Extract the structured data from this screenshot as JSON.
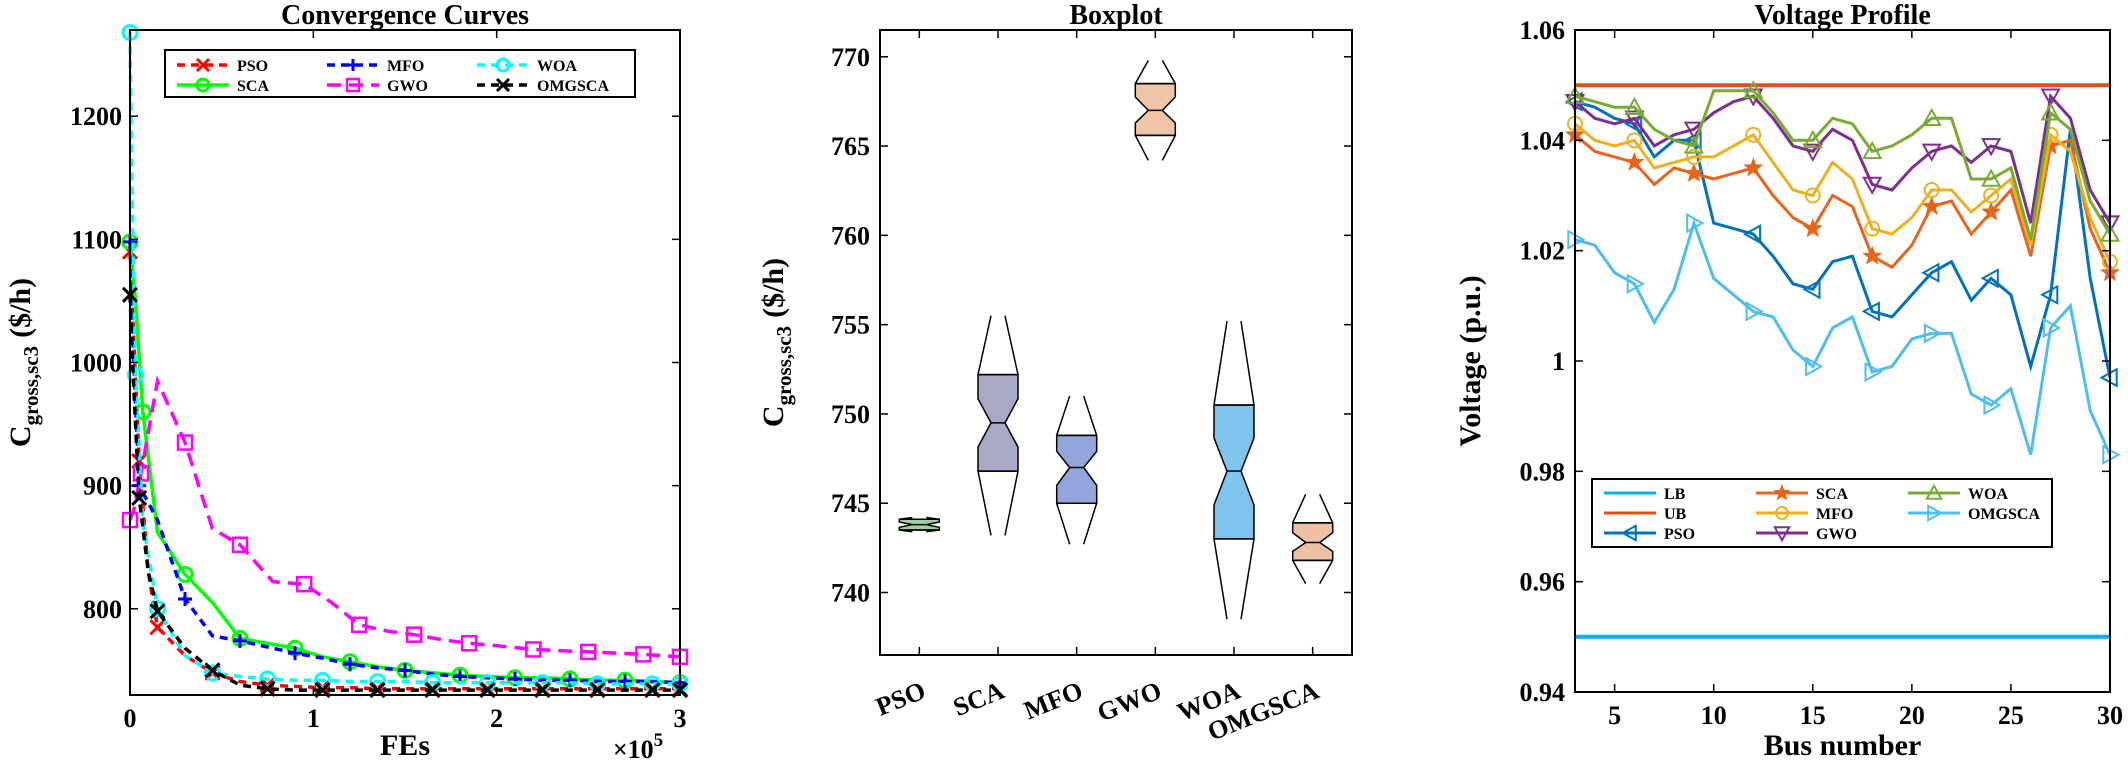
{
  "chart_data": [
    {
      "type": "line",
      "title": "Convergence Curves",
      "xlabel": "FEs",
      "ylabel_main": "C",
      "ylabel_sub": "gross,sc3",
      "ylabel_unit": "($/h)",
      "x_multiplier": "×10",
      "x_multiplier_exp": "5",
      "xlim": [
        0,
        3
      ],
      "ylim": [
        730,
        1270
      ],
      "xticks": [
        0,
        1,
        2,
        3
      ],
      "yticks": [
        800,
        900,
        1000,
        1100,
        1200
      ],
      "legend": "top",
      "series": [
        {
          "name": "PSO",
          "color": "#ff0000",
          "dash": "8,6",
          "marker": "x",
          "x": [
            0,
            0.02,
            0.05,
            0.1,
            0.15,
            0.3,
            0.45,
            0.6,
            0.75,
            0.9,
            1.05,
            1.2,
            1.35,
            1.5,
            1.65,
            1.8,
            1.95,
            2.1,
            2.25,
            2.4,
            2.55,
            2.7,
            2.85,
            3.0
          ],
          "y": [
            1090,
            1020,
            920,
            830,
            785,
            762,
            748,
            741,
            738,
            737,
            736,
            736,
            735,
            735,
            735,
            735,
            735,
            735,
            735,
            735,
            735,
            735,
            735,
            735
          ]
        },
        {
          "name": "SCA",
          "color": "#00ff00",
          "dash": "",
          "marker": "o",
          "x": [
            0,
            0.03,
            0.07,
            0.15,
            0.3,
            0.45,
            0.6,
            0.75,
            0.9,
            1.05,
            1.2,
            1.35,
            1.5,
            1.65,
            1.8,
            1.95,
            2.1,
            2.25,
            2.4,
            2.55,
            2.7,
            2.85,
            3.0
          ],
          "y": [
            1098,
            1050,
            960,
            862,
            828,
            805,
            776,
            772,
            768,
            761,
            757,
            753,
            750,
            748,
            746,
            745,
            744,
            744,
            743,
            742,
            742,
            741,
            740
          ]
        },
        {
          "name": "MFO",
          "color": "#0000ff",
          "dash": "8,6",
          "marker": "+",
          "x": [
            0,
            0.02,
            0.05,
            0.15,
            0.3,
            0.45,
            0.6,
            0.75,
            0.9,
            1.05,
            1.2,
            1.35,
            1.5,
            1.65,
            1.8,
            1.95,
            2.1,
            2.25,
            2.4,
            2.55,
            2.7,
            2.85,
            3.0
          ],
          "y": [
            1098,
            1000,
            900,
            872,
            808,
            778,
            774,
            769,
            764,
            760,
            755,
            752,
            750,
            747,
            745,
            744,
            743,
            742,
            742,
            741,
            741,
            741,
            740
          ]
        },
        {
          "name": "GWO",
          "color": "#ff00ff",
          "dash": "14,8",
          "marker": "s",
          "x": [
            0,
            0.02,
            0.06,
            0.15,
            0.3,
            0.45,
            0.6,
            0.78,
            0.95,
            1.1,
            1.25,
            1.4,
            1.55,
            1.7,
            1.85,
            2.0,
            2.2,
            2.35,
            2.5,
            2.65,
            2.8,
            3.0
          ],
          "y": [
            872,
            880,
            910,
            985,
            935,
            865,
            852,
            822,
            820,
            805,
            787,
            782,
            779,
            775,
            772,
            770,
            767,
            766,
            765,
            764,
            763,
            761
          ]
        },
        {
          "name": "WOA",
          "color": "#00ffff",
          "dash": "8,6",
          "marker": "o",
          "x": [
            0,
            0.01,
            0.03,
            0.07,
            0.15,
            0.3,
            0.45,
            0.6,
            0.75,
            0.9,
            1.05,
            1.2,
            1.35,
            1.5,
            1.65,
            1.8,
            1.95,
            2.1,
            2.25,
            2.4,
            2.55,
            2.7,
            2.85,
            3.0
          ],
          "y": [
            1268,
            1150,
            990,
            870,
            800,
            762,
            748,
            745,
            743,
            742,
            742,
            741,
            741,
            741,
            740,
            740,
            740,
            740,
            740,
            740,
            739,
            739,
            739,
            739
          ]
        },
        {
          "name": "OMGSCA",
          "color": "#000000",
          "dash": "8,6",
          "marker": "x",
          "x": [
            0,
            0.02,
            0.05,
            0.1,
            0.15,
            0.3,
            0.45,
            0.6,
            0.75,
            0.9,
            1.05,
            1.2,
            1.35,
            1.5,
            1.65,
            1.8,
            1.95,
            2.1,
            2.25,
            2.4,
            2.55,
            2.7,
            2.85,
            3.0
          ],
          "y": [
            1055,
            980,
            890,
            830,
            798,
            768,
            750,
            738,
            735,
            734,
            734,
            734,
            734,
            734,
            734,
            734,
            734,
            734,
            734,
            734,
            734,
            734,
            734,
            734
          ]
        }
      ]
    },
    {
      "type": "box",
      "title": "Boxplot",
      "ylabel_main": "C",
      "ylabel_sub": "gross,sc3",
      "ylabel_unit": "($/h)",
      "ylim": [
        736.5,
        771.5
      ],
      "yticks": [
        740,
        745,
        750,
        755,
        760,
        765,
        770
      ],
      "categories": [
        "PSO",
        "SCA",
        "MFO",
        "GWO",
        "WOA",
        "OMGSCA"
      ],
      "boxes": [
        {
          "name": "PSO",
          "q1": 743.5,
          "median": 743.8,
          "q3": 744.1,
          "min": 743.4,
          "max": 744.2,
          "color": "#9fcf9f"
        },
        {
          "name": "SCA",
          "q1": 746.8,
          "median": 749.5,
          "q3": 752.2,
          "min": 743.2,
          "max": 755.5,
          "color": "#a7a9c7"
        },
        {
          "name": "MFO",
          "q1": 745.0,
          "median": 747.0,
          "q3": 748.8,
          "min": 742.7,
          "max": 751.0,
          "color": "#93a6dc"
        },
        {
          "name": "GWO",
          "q1": 765.6,
          "median": 767.0,
          "q3": 768.5,
          "min": 764.2,
          "max": 769.8,
          "color": "#eec5a6"
        },
        {
          "name": "WOA",
          "q1": 743.0,
          "median": 746.8,
          "q3": 750.5,
          "min": 738.5,
          "max": 755.2,
          "color": "#7fc4ec"
        },
        {
          "name": "OMGSCA",
          "q1": 741.8,
          "median": 742.8,
          "q3": 743.9,
          "min": 740.5,
          "max": 745.5,
          "color": "#eec0a2"
        }
      ]
    },
    {
      "type": "line",
      "title": "Voltage Profile",
      "xlabel": "Bus number",
      "ylabel": "Voltage (p.u.)",
      "xlim": [
        3,
        30
      ],
      "ylim": [
        0.94,
        1.06
      ],
      "xticks": [
        5,
        10,
        15,
        20,
        25,
        30
      ],
      "yticks": [
        0.94,
        0.96,
        0.98,
        1,
        1.02,
        1.04,
        1.06
      ],
      "ytick_labels": [
        "0.94",
        "0.96",
        "0.98",
        "1",
        "1.02",
        "1.04",
        "1.06"
      ],
      "legend": "bottom-left",
      "bus": [
        3,
        4,
        5,
        6,
        7,
        8,
        9,
        10,
        11,
        12,
        13,
        14,
        15,
        16,
        17,
        18,
        19,
        20,
        21,
        22,
        23,
        24,
        25,
        26,
        27,
        28,
        29,
        30
      ],
      "series": [
        {
          "name": "LB",
          "color": "#00b0f0",
          "marker": "",
          "values": [
            0.95,
            0.95,
            0.95,
            0.95,
            0.95,
            0.95,
            0.95,
            0.95,
            0.95,
            0.95,
            0.95,
            0.95,
            0.95,
            0.95,
            0.95,
            0.95,
            0.95,
            0.95,
            0.95,
            0.95,
            0.95,
            0.95,
            0.95,
            0.95,
            0.95,
            0.95,
            0.95,
            0.95
          ]
        },
        {
          "name": "UB",
          "color": "#d95319",
          "marker": "",
          "values": [
            1.05,
            1.05,
            1.05,
            1.05,
            1.05,
            1.05,
            1.05,
            1.05,
            1.05,
            1.05,
            1.05,
            1.05,
            1.05,
            1.05,
            1.05,
            1.05,
            1.05,
            1.05,
            1.05,
            1.05,
            1.05,
            1.05,
            1.05,
            1.05,
            1.05,
            1.05,
            1.05,
            1.05
          ]
        },
        {
          "name": "PSO",
          "color": "#0072bd",
          "marker": "tri-left",
          "values": [
            1.047,
            1.046,
            1.044,
            1.043,
            1.037,
            1.04,
            1.04,
            1.025,
            1.024,
            1.023,
            1.019,
            1.014,
            1.013,
            1.018,
            1.019,
            1.009,
            1.008,
            1.012,
            1.016,
            1.018,
            1.011,
            1.015,
            1.012,
            0.999,
            1.012,
            1.042,
            1.015,
            0.997
          ]
        },
        {
          "name": "SCA",
          "color": "#e8641b",
          "marker": "star",
          "values": [
            1.041,
            1.038,
            1.037,
            1.036,
            1.032,
            1.035,
            1.034,
            1.033,
            1.034,
            1.035,
            1.03,
            1.026,
            1.024,
            1.03,
            1.028,
            1.019,
            1.017,
            1.021,
            1.028,
            1.029,
            1.023,
            1.027,
            1.031,
            1.019,
            1.039,
            1.04,
            1.024,
            1.016
          ]
        },
        {
          "name": "MFO",
          "color": "#edb120",
          "marker": "circle",
          "values": [
            1.043,
            1.04,
            1.039,
            1.04,
            1.035,
            1.036,
            1.037,
            1.037,
            1.039,
            1.041,
            1.036,
            1.031,
            1.03,
            1.036,
            1.033,
            1.024,
            1.023,
            1.026,
            1.031,
            1.031,
            1.027,
            1.03,
            1.033,
            1.021,
            1.041,
            1.038,
            1.026,
            1.018
          ]
        },
        {
          "name": "GWO",
          "color": "#7e2f8e",
          "marker": "tri-down",
          "values": [
            1.047,
            1.044,
            1.043,
            1.044,
            1.039,
            1.041,
            1.042,
            1.045,
            1.047,
            1.048,
            1.044,
            1.039,
            1.038,
            1.042,
            1.04,
            1.032,
            1.031,
            1.035,
            1.038,
            1.039,
            1.036,
            1.039,
            1.038,
            1.025,
            1.048,
            1.044,
            1.031,
            1.025
          ]
        },
        {
          "name": "WOA",
          "color": "#77ac30",
          "marker": "tri-up",
          "values": [
            1.048,
            1.047,
            1.046,
            1.046,
            1.042,
            1.04,
            1.039,
            1.049,
            1.049,
            1.049,
            1.045,
            1.04,
            1.04,
            1.044,
            1.043,
            1.038,
            1.039,
            1.041,
            1.044,
            1.044,
            1.033,
            1.033,
            1.035,
            1.022,
            1.045,
            1.042,
            1.029,
            1.023
          ]
        },
        {
          "name": "OMGSCA",
          "color": "#4dbeee",
          "marker": "tri-right",
          "values": [
            1.022,
            1.021,
            1.016,
            1.014,
            1.007,
            1.013,
            1.025,
            1.015,
            1.012,
            1.009,
            1.008,
            1.002,
            0.999,
            1.006,
            1.008,
            0.998,
            0.999,
            1.004,
            1.005,
            1.005,
            0.994,
            0.992,
            0.995,
            0.983,
            1.006,
            1.01,
            0.991,
            0.983
          ]
        }
      ]
    }
  ]
}
